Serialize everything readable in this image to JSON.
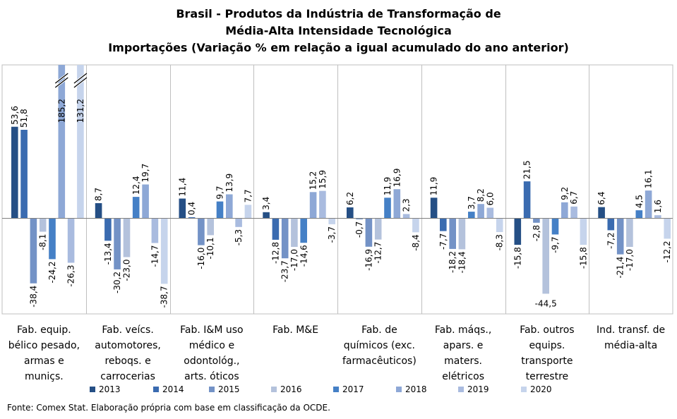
{
  "chart_data": {
    "type": "bar",
    "title": "Brasil - Produtos da Indústria de Transformação de",
    "subtitle": "Média-Alta Intensidade Tecnológica",
    "subtitle2": "Importações (Variação % em relação a igual acumulado do ano anterior)",
    "xlabel": "",
    "ylabel": "",
    "categories": [
      "Fab. equip. bélico pesado, armas e muniçs.",
      "Fab. veícs. automotores, reboqs. e carrocerias",
      "Fab. I&M uso médico e odontológ., arts. óticos",
      "Fab. M&E",
      "Fab. de químicos (exc. farmacêuticos)",
      "Fab. máqs., apars. e maters. elétricos",
      "Fab. outros equips. transporte terrestre",
      "Ind. transf. de média-alta"
    ],
    "category_lines": [
      [
        "Fab. equip.",
        "bélico pesado,",
        "armas e",
        "muniçs."
      ],
      [
        "Fab. veícs.",
        "automotores,",
        "reboqs. e",
        "carrocerias"
      ],
      [
        "Fab. I&M uso",
        "médico e",
        "odontológ.,",
        "arts. óticos"
      ],
      [
        "Fab. M&E"
      ],
      [
        "Fab. de",
        "químicos (exc.",
        "farmacêuticos)"
      ],
      [
        "Fab. máqs.,",
        "apars. e",
        "maters.",
        "elétricos"
      ],
      [
        "Fab. outros",
        "equips.",
        "transporte",
        "terrestre"
      ],
      [
        "Ind. transf. de",
        "média-alta"
      ]
    ],
    "series": [
      {
        "name": "2013",
        "color": "#254f85",
        "values": [
          53.6,
          8.7,
          11.4,
          3.4,
          6.2,
          11.9,
          -15.8,
          6.4
        ],
        "labels": [
          "53,6",
          "8,7",
          "11,4",
          "3,4",
          "6,2",
          "11,9",
          "-15,8",
          "6,4"
        ]
      },
      {
        "name": "2014",
        "color": "#3a6bb0",
        "values": [
          51.8,
          -13.4,
          0.4,
          -12.8,
          -0.7,
          -7.7,
          21.5,
          -7.2
        ],
        "labels": [
          "51,8",
          "-13,4",
          "0,4",
          "-12,8",
          "-0,7",
          "-7,7",
          "21,5",
          "-7,2"
        ]
      },
      {
        "name": "2015",
        "color": "#7392c6",
        "values": [
          -38.4,
          -30.2,
          -16.0,
          -23.7,
          -16.9,
          -18.2,
          -2.8,
          -21.4
        ],
        "labels": [
          "-38,4",
          "-30,2",
          "-16,0",
          "-23,7",
          "-16,9",
          "-18,2",
          "-2,8",
          "-21,4"
        ]
      },
      {
        "name": "2016",
        "color": "#b4c2dc",
        "values": [
          -8.1,
          -23.0,
          -10.1,
          -17.0,
          -12.7,
          -18.4,
          -44.5,
          -17.0
        ],
        "labels": [
          "-8,1",
          "-23,0",
          "-10,1",
          "-17,0",
          "-12,7",
          "-18,4",
          "-44,5",
          "-17,0"
        ]
      },
      {
        "name": "2017",
        "color": "#4580c6",
        "values": [
          -24.2,
          12.4,
          9.7,
          -14.6,
          11.9,
          3.7,
          -9.7,
          4.5
        ],
        "labels": [
          "-24,2",
          "12,4",
          "9,7",
          "-14,6",
          "11,9",
          "3,7",
          "-9,7",
          "4,5"
        ]
      },
      {
        "name": "2018",
        "color": "#8ea8d6",
        "values": [
          185.2,
          19.7,
          13.9,
          15.2,
          16.9,
          8.2,
          9.2,
          16.1
        ],
        "labels": [
          "185,2",
          "19,7",
          "13,9",
          "15,2",
          "16,9",
          "8,2",
          "9,2",
          "16,1"
        ]
      },
      {
        "name": "2019",
        "color": "#a9bbdf",
        "values": [
          -26.3,
          -14.7,
          -5.3,
          15.9,
          2.3,
          6.0,
          6.7,
          1.6
        ],
        "labels": [
          "-26,3",
          "-14,7",
          "-5,3",
          "15,9",
          "2,3",
          "6,0",
          "6,7",
          "1,6"
        ]
      },
      {
        "name": "2020",
        "color": "#c6d4ec",
        "values": [
          131.2,
          -38.7,
          7.7,
          -3.7,
          -8.4,
          -8.3,
          -15.8,
          -12.2
        ],
        "labels": [
          "131,2",
          "-38,7",
          "7,7",
          "-3,7",
          "-8,4",
          "-8,3",
          "-15,8",
          "-12,2"
        ]
      }
    ],
    "ylim": [
      -50,
      60
    ],
    "axis_break": true,
    "grid": false,
    "legend_position": "bottom"
  },
  "footer": "Fonte: Comex Stat. Elaboração própria com base em classificação da OCDE."
}
